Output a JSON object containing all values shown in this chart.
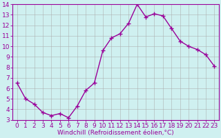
{
  "x_values": [
    0,
    1,
    2,
    3,
    4,
    5,
    6,
    7,
    8,
    9,
    10,
    11,
    12,
    13,
    14,
    15,
    16,
    17,
    18,
    19,
    20,
    21,
    22,
    23
  ],
  "y_values": [
    6.5,
    5.0,
    4.5,
    3.7,
    3.4,
    3.6,
    3.2,
    4.3,
    5.8,
    6.5,
    9.6,
    10.8,
    11.2,
    12.2,
    14.0,
    12.8,
    13.1,
    12.9,
    11.7,
    10.5,
    10.0,
    9.7,
    9.2,
    8.1
  ],
  "line_color": "#990099",
  "marker_color": "#990099",
  "background_color": "#cff0f0",
  "grid_color": "#aaaaaa",
  "xlabel": "Windchill (Refroidissement éolien,°C)",
  "xlabel_color": "#990099",
  "ylim": [
    3,
    14
  ],
  "xlim": [
    -0.5,
    23.5
  ],
  "yticks": [
    3,
    4,
    5,
    6,
    7,
    8,
    9,
    10,
    11,
    12,
    13,
    14
  ],
  "xticks": [
    0,
    1,
    2,
    3,
    4,
    5,
    6,
    7,
    8,
    9,
    10,
    11,
    12,
    13,
    14,
    15,
    16,
    17,
    18,
    19,
    20,
    21,
    22,
    23
  ],
  "tick_label_color": "#990099",
  "axis_color": "#990099",
  "font_size": 6.5,
  "marker_size": 4,
  "line_width": 1.0
}
